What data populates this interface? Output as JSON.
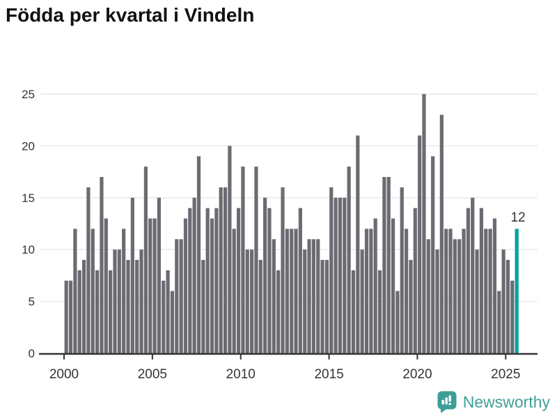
{
  "title": "Födda per kvartal i Vindeln",
  "footer": {
    "brand": "Newsworthy",
    "logo_icon": "bar-chart-speech-bubble-icon"
  },
  "colors": {
    "background": "#ffffff",
    "bar": "#6b6b72",
    "highlight": "#00a39e",
    "grid": "#e7e7e7",
    "axis": "#333333",
    "tick_label": "#333333",
    "title": "#111111",
    "brand": "#3f9e98"
  },
  "chart_data": {
    "type": "bar",
    "title": "Födda per kvartal i Vindeln",
    "xlabel": "",
    "ylabel": "",
    "x_start": {
      "year": 2000,
      "quarter": 1
    },
    "x_end": {
      "year": 2025,
      "quarter": 3
    },
    "quarters_per_year": 4,
    "ylim": [
      0,
      25
    ],
    "y_ticks": [
      0,
      5,
      10,
      15,
      20,
      25
    ],
    "x_tick_years": [
      2000,
      2005,
      2010,
      2015,
      2020,
      2025
    ],
    "grid": "horizontal",
    "legend": "none",
    "highlight": {
      "index": 102,
      "label": "12",
      "period": "2025 Q3"
    },
    "values": [
      7,
      7,
      12,
      8,
      9,
      16,
      12,
      8,
      17,
      13,
      8,
      10,
      10,
      12,
      9,
      15,
      9,
      10,
      18,
      13,
      13,
      15,
      7,
      8,
      6,
      11,
      11,
      13,
      14,
      15,
      19,
      9,
      14,
      13,
      14,
      16,
      16,
      20,
      12,
      14,
      18,
      10,
      10,
      18,
      9,
      15,
      14,
      11,
      8,
      16,
      12,
      12,
      12,
      14,
      10,
      11,
      11,
      11,
      9,
      9,
      16,
      15,
      15,
      15,
      18,
      8,
      21,
      10,
      12,
      12,
      13,
      8,
      17,
      17,
      13,
      6,
      16,
      12,
      9,
      14,
      21,
      25,
      11,
      19,
      10,
      23,
      12,
      12,
      11,
      11,
      12,
      14,
      15,
      10,
      14,
      12,
      12,
      13,
      6,
      10,
      9,
      7,
      12
    ]
  }
}
